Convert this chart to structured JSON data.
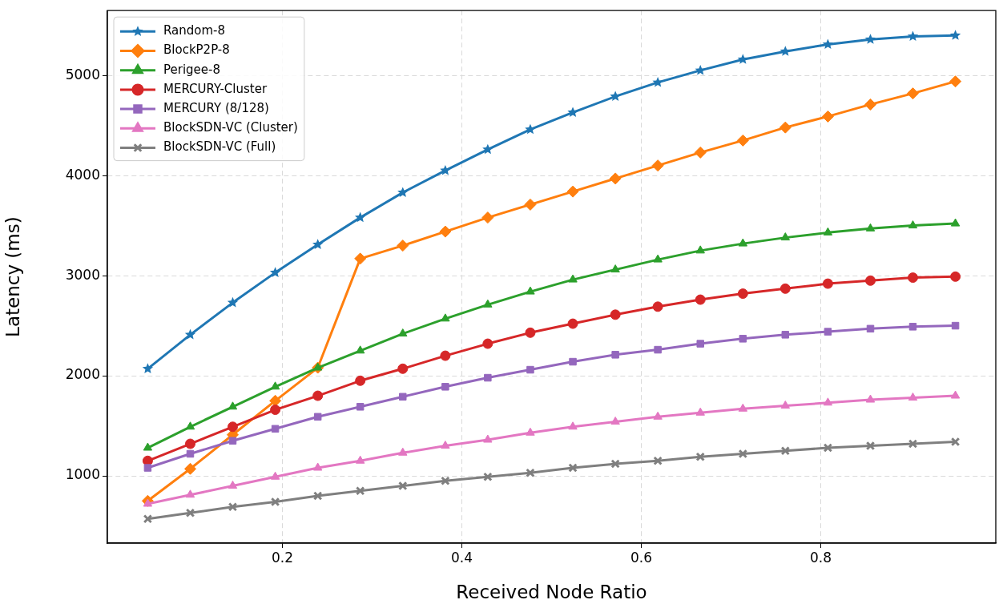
{
  "chart_data": {
    "type": "line",
    "xlabel": "Received Node Ratio",
    "ylabel": "Latency (ms)",
    "x": [
      0.05,
      0.0974,
      0.1447,
      0.1921,
      0.2395,
      0.2868,
      0.3342,
      0.3816,
      0.4289,
      0.4763,
      0.5237,
      0.5711,
      0.6184,
      0.6658,
      0.7132,
      0.7605,
      0.8079,
      0.8553,
      0.9026,
      0.95
    ],
    "xlim": [
      0.005,
      0.995
    ],
    "xticks": [
      0.2,
      0.4,
      0.6,
      0.8
    ],
    "ylim": [
      328,
      5648
    ],
    "yticks": [
      1000,
      2000,
      3000,
      4000,
      5000
    ],
    "grid": true,
    "legend": "top left",
    "line_style": "solid",
    "series": [
      {
        "name": "Random-8",
        "color": "#1f77b4",
        "marker": "star",
        "values": [
          2070,
          2410,
          2730,
          3030,
          3310,
          3580,
          3830,
          4050,
          4260,
          4460,
          4630,
          4790,
          4930,
          5050,
          5160,
          5240,
          5310,
          5360,
          5390,
          5400
        ]
      },
      {
        "name": "BlockP2P-8",
        "color": "#ff7f0e",
        "marker": "diamond",
        "values": [
          750,
          1070,
          1410,
          1750,
          2080,
          3170,
          3300,
          3440,
          3580,
          3710,
          3840,
          3970,
          4100,
          4230,
          4350,
          4480,
          4590,
          4710,
          4820,
          4940
        ]
      },
      {
        "name": "Perigee-8",
        "color": "#2ca02c",
        "marker": "triangle",
        "values": [
          1280,
          1490,
          1690,
          1890,
          2080,
          2250,
          2420,
          2570,
          2710,
          2840,
          2960,
          3060,
          3160,
          3250,
          3320,
          3380,
          3430,
          3470,
          3500,
          3520
        ]
      },
      {
        "name": "MERCURY-Cluster",
        "color": "#d62728",
        "marker": "circle",
        "values": [
          1150,
          1320,
          1490,
          1660,
          1800,
          1950,
          2070,
          2200,
          2320,
          2430,
          2520,
          2610,
          2690,
          2760,
          2820,
          2870,
          2920,
          2950,
          2980,
          2990
        ]
      },
      {
        "name": "MERCURY (8/128)",
        "color": "#9467bd",
        "marker": "square",
        "values": [
          1080,
          1220,
          1350,
          1470,
          1590,
          1690,
          1790,
          1890,
          1980,
          2060,
          2140,
          2210,
          2260,
          2320,
          2370,
          2410,
          2440,
          2470,
          2490,
          2500
        ]
      },
      {
        "name": "BlockSDN-VC (Cluster)",
        "color": "#e377c2",
        "marker": "triangle",
        "values": [
          720,
          810,
          900,
          990,
          1080,
          1150,
          1230,
          1300,
          1360,
          1430,
          1490,
          1540,
          1590,
          1630,
          1670,
          1700,
          1730,
          1760,
          1780,
          1800
        ]
      },
      {
        "name": "BlockSDN-VC (Full)",
        "color": "#7f7f7f",
        "marker": "cross",
        "values": [
          570,
          630,
          690,
          740,
          800,
          850,
          900,
          950,
          990,
          1030,
          1080,
          1120,
          1150,
          1190,
          1220,
          1250,
          1280,
          1300,
          1320,
          1340
        ]
      }
    ]
  }
}
